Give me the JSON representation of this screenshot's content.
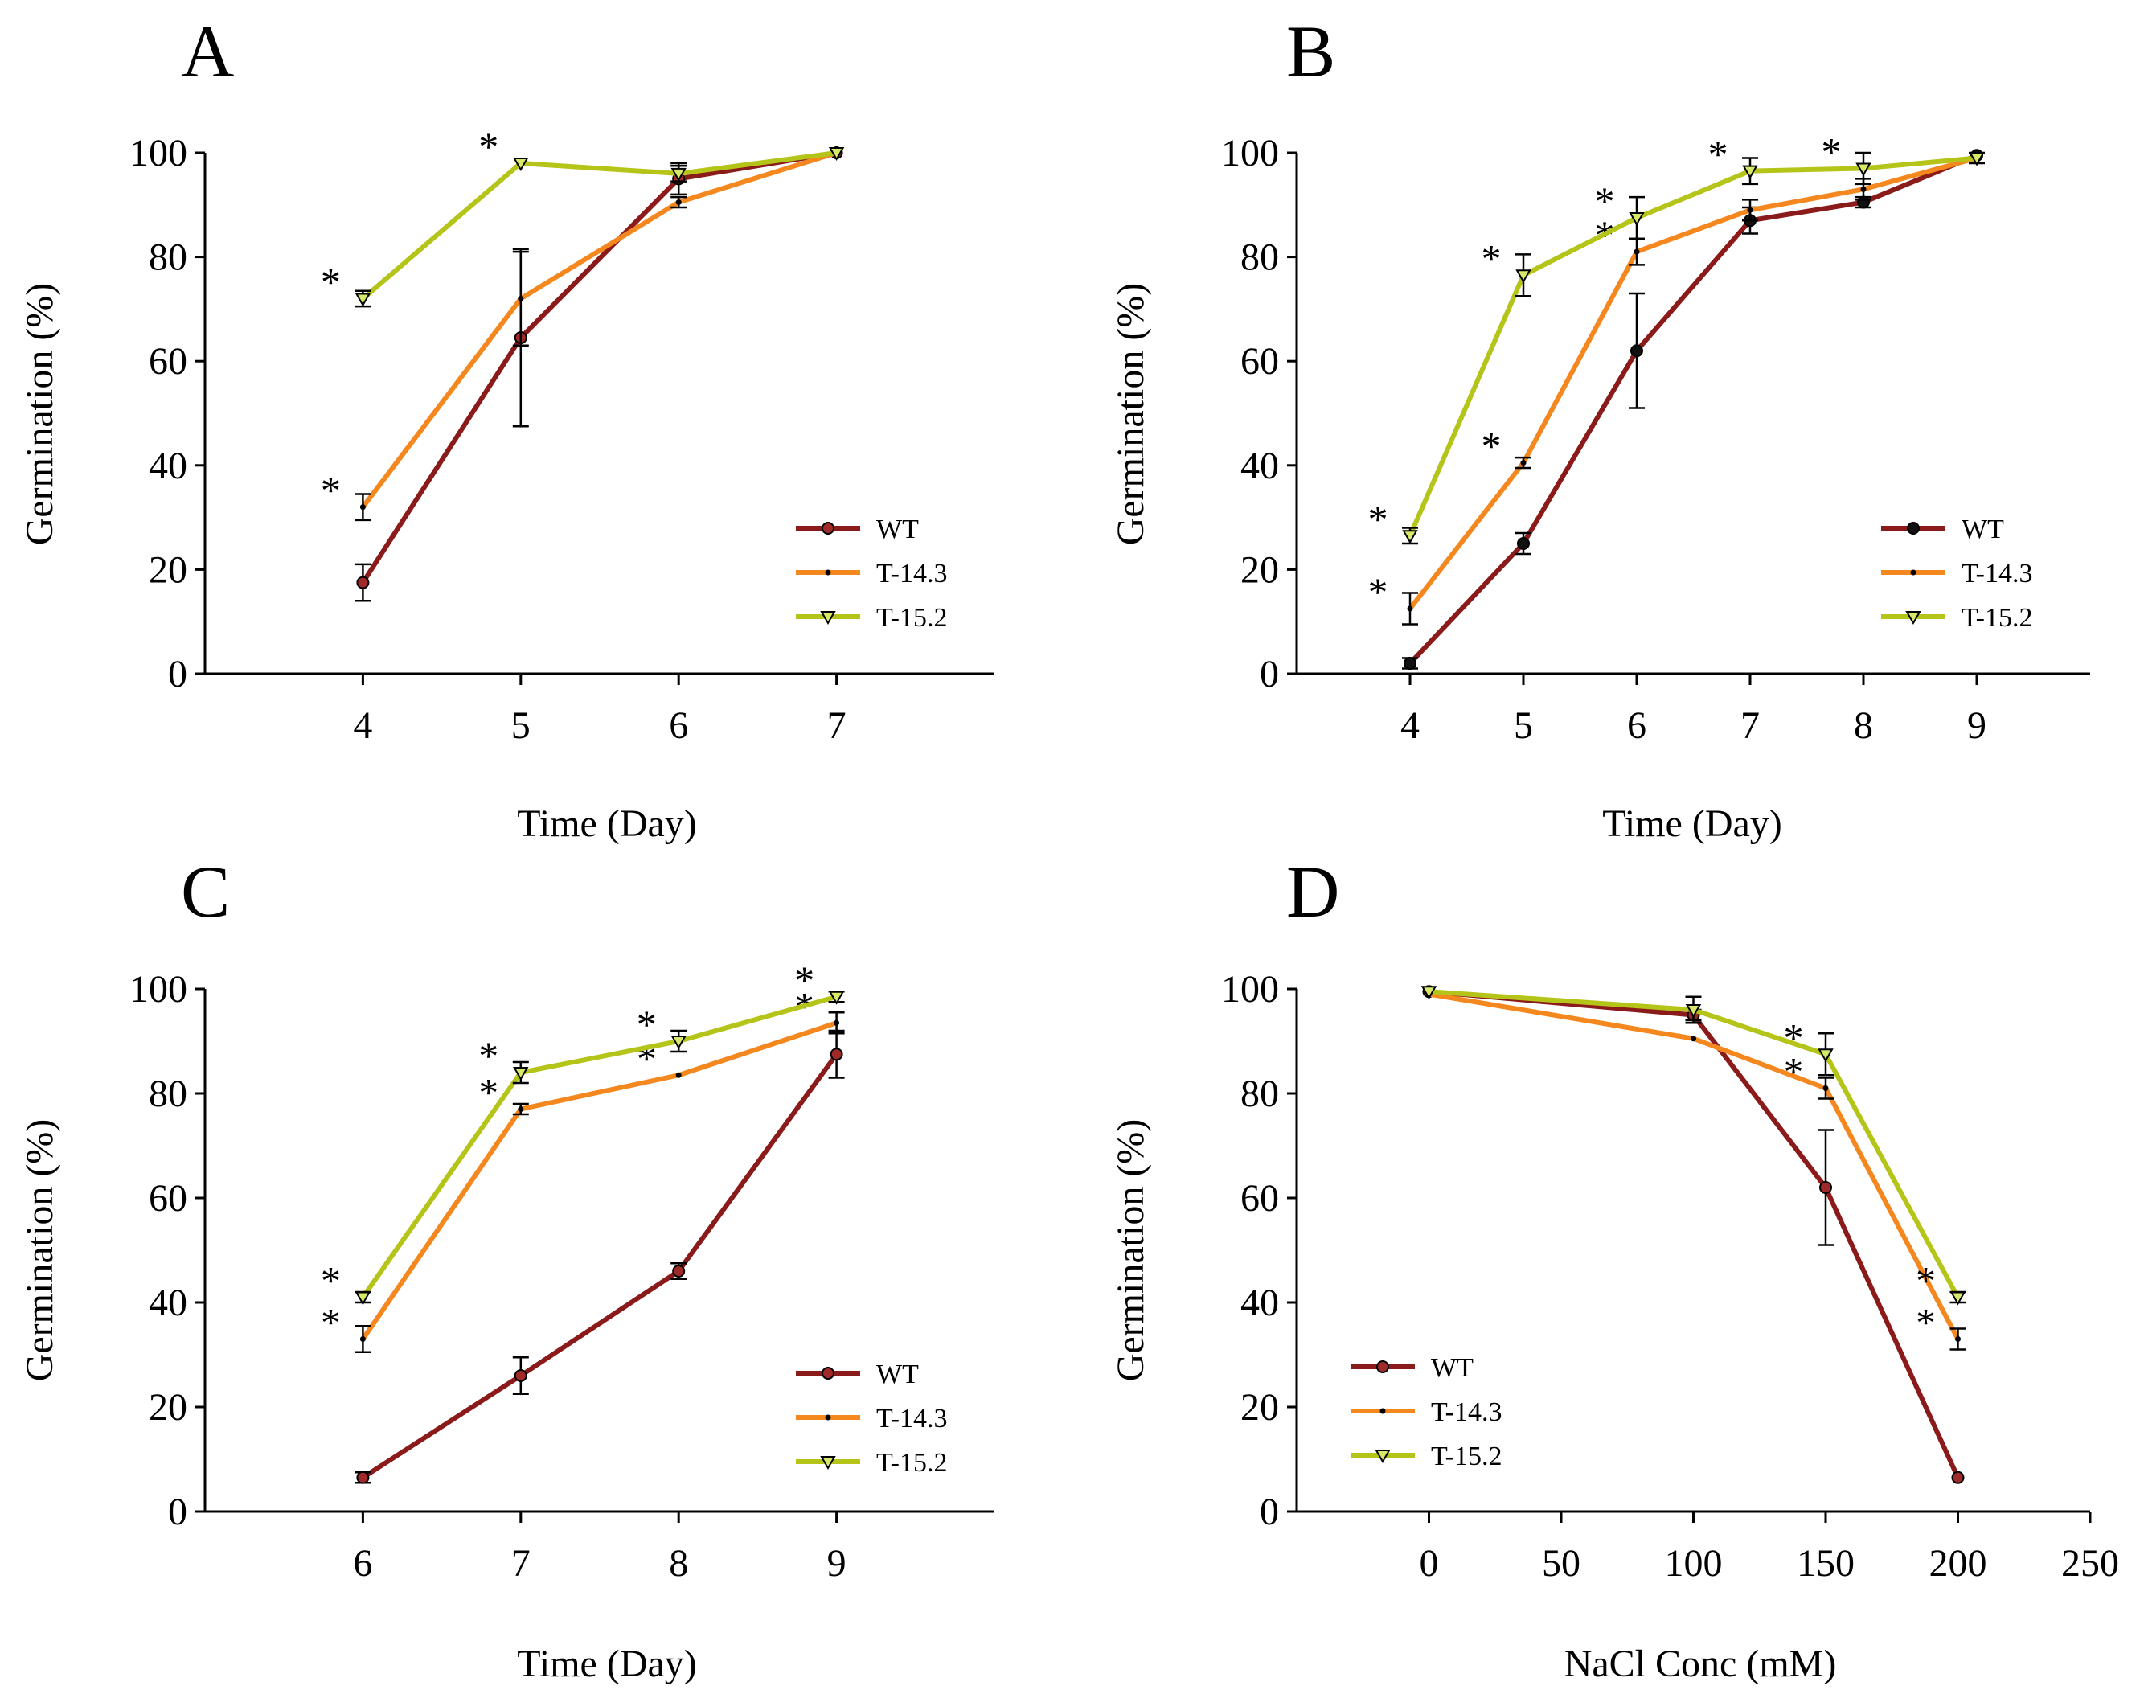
{
  "colors": {
    "WT": "#8b1a1a",
    "T-14.3": "#f5871f",
    "T-15.2": "#b5c418",
    "axis": "#000000"
  },
  "chart_data": [
    {
      "type": "line",
      "panel": "A",
      "xlabel": "Time (Day)",
      "ylabel": "Germination (%)",
      "x": [
        4,
        5,
        6,
        7
      ],
      "xlim": [
        3,
        8
      ],
      "xticks": [
        4,
        5,
        6,
        7
      ],
      "ylim": [
        0,
        100
      ],
      "yticks": [
        0,
        20,
        40,
        60,
        80,
        100
      ],
      "legend_position": "lower-right",
      "series": [
        {
          "name": "WT",
          "values": [
            17.5,
            64.5,
            95,
            100
          ],
          "errors": [
            3.5,
            17,
            3,
            0.5
          ],
          "marker": "circle",
          "star": [
            false,
            false,
            false,
            false
          ]
        },
        {
          "name": "T-14.3",
          "values": [
            32,
            72,
            90.5,
            100
          ],
          "errors": [
            2.5,
            9,
            1,
            0.5
          ],
          "marker": "dot",
          "star": [
            true,
            false,
            false,
            false
          ]
        },
        {
          "name": "T-15.2",
          "values": [
            72,
            98,
            96,
            100
          ],
          "errors": [
            1.5,
            0.5,
            1.5,
            0.5
          ],
          "marker": "triangle",
          "star": [
            true,
            true,
            false,
            false
          ]
        }
      ]
    },
    {
      "type": "line",
      "panel": "B",
      "xlabel": "Time (Day)",
      "ylabel": "Germination (%)",
      "x": [
        4,
        5,
        6,
        7,
        8,
        9
      ],
      "xlim": [
        3,
        10
      ],
      "xticks": [
        4,
        5,
        6,
        7,
        8,
        9
      ],
      "ylim": [
        0,
        100
      ],
      "yticks": [
        0,
        20,
        40,
        60,
        80,
        100
      ],
      "legend_position": "lower-right",
      "series": [
        {
          "name": "WT",
          "values": [
            2,
            25,
            62,
            87,
            90.5,
            99.5
          ],
          "errors": [
            1,
            2,
            11,
            2.5,
            1,
            0.5
          ],
          "marker": "circle-filled",
          "star": [
            false,
            false,
            false,
            false,
            false,
            false
          ]
        },
        {
          "name": "T-14.3",
          "values": [
            12.5,
            40.5,
            81,
            89,
            93,
            99
          ],
          "errors": [
            3,
            1,
            2.5,
            2,
            2,
            0.5
          ],
          "marker": "dot",
          "star": [
            true,
            true,
            true,
            false,
            false,
            false
          ]
        },
        {
          "name": "T-15.2",
          "values": [
            26.5,
            76.5,
            87.5,
            96.5,
            97,
            99
          ],
          "errors": [
            1.5,
            4,
            4,
            2.5,
            3,
            1
          ],
          "marker": "triangle",
          "star": [
            true,
            true,
            true,
            true,
            true,
            false
          ]
        }
      ]
    },
    {
      "type": "line",
      "panel": "C",
      "xlabel": "Time (Day)",
      "ylabel": "Germination (%)",
      "x": [
        6,
        7,
        8,
        9
      ],
      "xlim": [
        5,
        10
      ],
      "xticks": [
        6,
        7,
        8,
        9
      ],
      "ylim": [
        0,
        100
      ],
      "yticks": [
        0,
        20,
        40,
        60,
        80,
        100
      ],
      "legend_position": "lower-right",
      "series": [
        {
          "name": "WT",
          "values": [
            6.5,
            26,
            46,
            87.5
          ],
          "errors": [
            1,
            3.5,
            1.5,
            4.5
          ],
          "marker": "circle",
          "star": [
            false,
            false,
            false,
            false
          ]
        },
        {
          "name": "T-14.3",
          "values": [
            33,
            77,
            83.5,
            93.5
          ],
          "errors": [
            2.5,
            1,
            0.5,
            2
          ],
          "marker": "dot",
          "star": [
            true,
            true,
            true,
            true
          ]
        },
        {
          "name": "T-15.2",
          "values": [
            41,
            84,
            90,
            98.5
          ],
          "errors": [
            1,
            2,
            2,
            1
          ],
          "marker": "triangle",
          "star": [
            true,
            true,
            true,
            true
          ]
        }
      ]
    },
    {
      "type": "line",
      "panel": "D",
      "xlabel": "NaCl Conc (mM)",
      "ylabel": "Germination (%)",
      "x": [
        0,
        100,
        150,
        200
      ],
      "xlim": [
        -50,
        250
      ],
      "xticks": [
        0,
        50,
        100,
        150,
        200,
        250
      ],
      "ylim": [
        0,
        100
      ],
      "yticks": [
        0,
        20,
        40,
        60,
        80,
        100
      ],
      "legend_position": "lower-left",
      "series": [
        {
          "name": "WT",
          "values": [
            99.5,
            95,
            62,
            6.5
          ],
          "errors": [
            0.5,
            1,
            11,
            0.5
          ],
          "marker": "circle",
          "star": [
            false,
            false,
            false,
            false
          ]
        },
        {
          "name": "T-14.3",
          "values": [
            99,
            90.5,
            81,
            33
          ],
          "errors": [
            0.5,
            0.5,
            2,
            2
          ],
          "marker": "dot",
          "star": [
            false,
            false,
            true,
            true
          ]
        },
        {
          "name": "T-15.2",
          "values": [
            99.5,
            96,
            87.5,
            41
          ],
          "errors": [
            0.5,
            2.5,
            4,
            1
          ],
          "marker": "triangle",
          "star": [
            false,
            false,
            true,
            true
          ]
        }
      ]
    }
  ]
}
